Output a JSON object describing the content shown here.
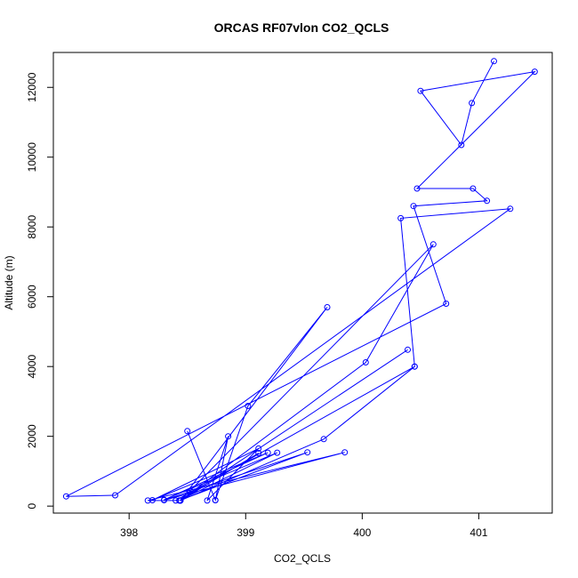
{
  "chart_data": {
    "type": "line",
    "title": "ORCAS RF07vlon CO2_QCLS",
    "xlabel": "CO2_QCLS",
    "ylabel": "Altitude (m)",
    "xlim": [
      397.35,
      401.63
    ],
    "ylim": [
      -200,
      13000
    ],
    "x_ticks": [
      398,
      399,
      400,
      401
    ],
    "y_ticks": [
      0,
      2000,
      4000,
      6000,
      8000,
      10000,
      12000
    ],
    "markers": "open-circle",
    "line_color": "#0000ff",
    "grid": false,
    "legend": "none",
    "series": [
      {
        "points": [
          [
            401.13,
            12750
          ],
          [
            400.94,
            11550
          ],
          [
            400.85,
            10350
          ],
          [
            400.5,
            11900
          ],
          [
            401.48,
            12450
          ],
          [
            400.47,
            9100
          ],
          [
            400.95,
            9100
          ],
          [
            401.07,
            8750
          ],
          [
            400.44,
            8600
          ],
          [
            400.72,
            5800
          ],
          [
            397.46,
            280
          ],
          [
            397.88,
            310
          ],
          [
            401.27,
            8520
          ],
          [
            400.33,
            8250
          ],
          [
            400.45,
            4000
          ],
          [
            398.4,
            160
          ],
          [
            398.16,
            160
          ],
          [
            399.85,
            1540
          ],
          [
            398.3,
            170
          ],
          [
            399.53,
            1540
          ],
          [
            398.43,
            160
          ],
          [
            399.27,
            1530
          ],
          [
            398.3,
            180
          ],
          [
            399.19,
            1530
          ],
          [
            398.2,
            170
          ],
          [
            399.11,
            1650
          ],
          [
            398.67,
            160
          ],
          [
            398.85,
            2000
          ],
          [
            398.74,
            170
          ],
          [
            398.5,
            2150
          ],
          [
            398.74,
            170
          ],
          [
            399.02,
            2870
          ],
          [
            399.7,
            5700
          ],
          [
            398.44,
            160
          ],
          [
            400.39,
            4480
          ],
          [
            398.44,
            160
          ],
          [
            399.11,
            1520
          ],
          [
            398.44,
            160
          ],
          [
            400.03,
            4120
          ],
          [
            400.61,
            7500
          ],
          [
            398.44,
            160
          ],
          [
            399.67,
            1920
          ],
          [
            400.45,
            4000
          ]
        ]
      }
    ]
  }
}
